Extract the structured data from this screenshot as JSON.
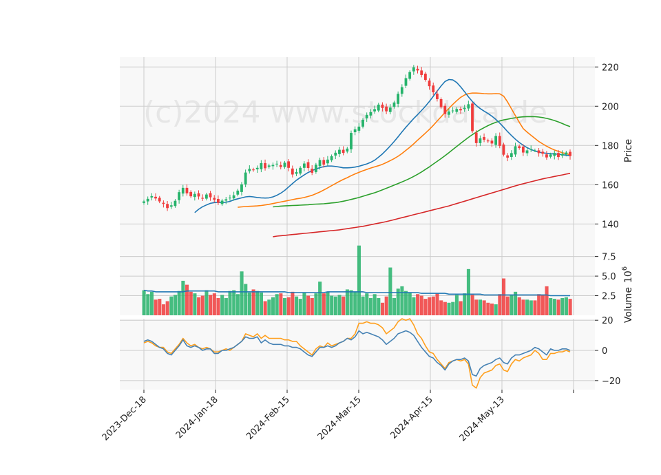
{
  "chart_data": [
    {
      "type": "candlestick",
      "ylabel": "Price",
      "ylim": [
        131,
        225
      ],
      "yticks": [
        140,
        160,
        180,
        200,
        220
      ],
      "watermark": "(c)2024 www.stockdata.de",
      "x_tick_labels": [
        "2023-Dec-18",
        "2024-Jan-18",
        "2024-Feb-15",
        "2024-Mar-15",
        "2024-Apr-15",
        "2024-May-13"
      ],
      "colors": {
        "up": "#26b36b",
        "down": "#f03c3c",
        "ma_fast": "#1f77b4",
        "ma_mid": "#ff7f0e",
        "ma_slow": "#2ca02c",
        "ma_long": "#d62728"
      },
      "close": [
        151.5,
        152.8,
        154.2,
        153.0,
        151.5,
        150.2,
        148.1,
        149.5,
        151.8,
        156.2,
        158.4,
        155.6,
        154.1,
        155.3,
        154.0,
        152.9,
        155.0,
        153.6,
        152.4,
        150.8,
        151.9,
        152.6,
        153.4,
        154.6,
        157.0,
        160.2,
        166.2,
        168.1,
        167.5,
        168.6,
        171.0,
        168.4,
        169.8,
        170.1,
        170.7,
        169.0,
        171.2,
        168.6,
        165.2,
        166.4,
        168.6,
        170.8,
        168.5,
        166.1,
        170.2,
        172.6,
        170.2,
        172.8,
        174.5,
        176.3,
        177.8,
        176.2,
        178.4,
        186.4,
        188.2,
        189.6,
        193.1,
        195.6,
        197.0,
        198.5,
        200.8,
        199.1,
        197.4,
        199.3,
        201.9,
        206.3,
        209.7,
        214.3,
        217.4,
        219.8,
        218.2,
        215.9,
        213.4,
        210.2,
        207.1,
        203.6,
        199.5,
        196.0,
        197.3,
        197.8,
        198.6,
        197.9,
        199.2,
        201.0,
        187.3,
        181.2,
        183.6,
        182.9,
        182.1,
        181.0,
        184.8,
        179.8,
        175.3,
        173.8,
        176.1,
        179.6,
        178.7,
        176.4,
        177.5,
        178.2,
        177.5,
        176.1,
        175.8,
        173.9,
        175.4,
        176.2,
        174.1,
        175.7,
        176.4,
        174.6
      ],
      "ma_fast": [
        145.8,
        147.5,
        148.8,
        149.7,
        150.5,
        150.9,
        151.0,
        150.9,
        151.1,
        151.5,
        152.3,
        152.8,
        153.3,
        153.8,
        154.0,
        153.8,
        153.5,
        153.3,
        153.2,
        153.3,
        153.8,
        154.6,
        155.7,
        157.1,
        158.8,
        160.6,
        162.3,
        163.7,
        165.0,
        166.2,
        167.2,
        168.0,
        168.7,
        169.2,
        169.5,
        169.5,
        169.3,
        169.0,
        168.6,
        168.6,
        168.7,
        169.0,
        169.4,
        170.0,
        170.6,
        171.4,
        172.5,
        174.0,
        175.7,
        177.7,
        179.8,
        182.0,
        184.4,
        186.9,
        189.3,
        191.5,
        193.7,
        195.7,
        197.8,
        200.0,
        202.4,
        205.0,
        207.7,
        210.3,
        212.6,
        213.6,
        213.4,
        212.1,
        209.9,
        207.4,
        204.8,
        202.4,
        200.4,
        198.8,
        197.5,
        196.3,
        194.9,
        193.3,
        191.4,
        189.3,
        187.1,
        185.1,
        183.2,
        181.5,
        180.1,
        178.9,
        177.9,
        177.2,
        176.6,
        176.2,
        176.0,
        175.8,
        175.7,
        175.5,
        175.3,
        175.0,
        174.8
      ],
      "ma_mid": [
        148.5,
        148.7,
        148.9,
        149.0,
        149.1,
        149.2,
        149.4,
        149.7,
        150.0,
        150.4,
        150.8,
        151.2,
        151.6,
        152.0,
        152.4,
        152.8,
        153.1,
        153.5,
        154.0,
        154.6,
        155.4,
        156.3,
        157.3,
        158.4,
        159.5,
        160.6,
        161.7,
        162.7,
        163.6,
        164.6,
        165.5,
        166.3,
        167.1,
        167.8,
        168.5,
        169.1,
        169.7,
        170.4,
        171.3,
        172.3,
        173.3,
        174.5,
        175.9,
        177.5,
        179.1,
        180.8,
        182.7,
        184.5,
        186.3,
        188.2,
        190.2,
        192.4,
        194.6,
        196.8,
        198.9,
        200.9,
        202.8,
        204.5,
        205.7,
        206.4,
        206.7,
        206.7,
        206.6,
        206.4,
        206.3,
        206.3,
        206.4,
        206.3,
        205.1,
        202.2,
        198.7,
        195.2,
        191.8,
        188.6,
        186.8,
        185.2,
        183.6,
        182.0,
        180.8,
        179.6,
        178.6,
        177.7,
        177.0,
        176.3,
        175.8,
        175.3
      ],
      "ma_slow": [
        148.7,
        148.9,
        149.1,
        149.2,
        149.3,
        149.4,
        149.5,
        149.6,
        149.7,
        149.8,
        150.0,
        150.1,
        150.2,
        150.3,
        150.5,
        150.7,
        150.9,
        151.2,
        151.6,
        152.0,
        152.5,
        153.0,
        153.5,
        154.1,
        154.7,
        155.3,
        155.9,
        156.6,
        157.4,
        158.2,
        159.0,
        159.8,
        160.6,
        161.4,
        162.3,
        163.2,
        164.2,
        165.3,
        166.5,
        167.8,
        169.1,
        170.5,
        171.9,
        173.3,
        174.8,
        176.3,
        177.9,
        179.5,
        181.1,
        182.6,
        184.1,
        185.5,
        186.8,
        188.0,
        189.1,
        190.1,
        191.0,
        191.8,
        192.5,
        193.0,
        193.4,
        193.8,
        194.1,
        194.4,
        194.6,
        194.7,
        194.7,
        194.7,
        194.5,
        194.2,
        193.8,
        193.3,
        192.7,
        192.0,
        191.2,
        190.3,
        189.6
      ],
      "ma_long": [
        133.5,
        133.8,
        134.0,
        134.2,
        134.4,
        134.6,
        134.8,
        135.0,
        135.2,
        135.4,
        135.6,
        135.8,
        136.0,
        136.2,
        136.4,
        136.6,
        136.8,
        137.0,
        137.3,
        137.6,
        137.9,
        138.2,
        138.5,
        138.8,
        139.2,
        139.6,
        140.0,
        140.4,
        140.8,
        141.2,
        141.7,
        142.2,
        142.7,
        143.2,
        143.7,
        144.2,
        144.7,
        145.2,
        145.7,
        146.2,
        146.7,
        147.2,
        147.7,
        148.2,
        148.7,
        149.2,
        149.8,
        150.4,
        151.0,
        151.6,
        152.2,
        152.8,
        153.4,
        154.0,
        154.6,
        155.2,
        155.8,
        156.4,
        157.0,
        157.6,
        158.2,
        158.8,
        159.4,
        160.0,
        160.5,
        161.0,
        161.5,
        162.0,
        162.5,
        163.0,
        163.4,
        163.8,
        164.2,
        164.6,
        165.0,
        165.4,
        165.8
      ]
    },
    {
      "type": "bar",
      "ylabel": "Volume",
      "unit": "10",
      "unit_exp": "6",
      "ylim": [
        0,
        9.4
      ],
      "yticks": [
        2.5,
        5.0,
        7.5
      ],
      "ytick_labels": [
        "2.5",
        "5.0",
        "7.5"
      ],
      "values": [
        3.2,
        2.7,
        3.0,
        2.0,
        2.1,
        1.4,
        1.8,
        2.4,
        2.6,
        3.1,
        4.4,
        3.9,
        3.0,
        2.8,
        2.3,
        2.5,
        3.2,
        2.6,
        2.8,
        2.2,
        2.6,
        2.2,
        3.1,
        3.2,
        2.7,
        5.6,
        4.0,
        2.9,
        3.3,
        3.1,
        2.9,
        1.8,
        2.0,
        2.3,
        2.7,
        2.8,
        2.2,
        2.3,
        3.0,
        2.4,
        2.1,
        2.9,
        2.5,
        2.2,
        2.8,
        4.3,
        2.8,
        3.0,
        2.5,
        2.4,
        2.6,
        2.4,
        3.3,
        3.2,
        3.0,
        8.9,
        2.4,
        2.8,
        2.2,
        2.7,
        2.2,
        1.6,
        2.4,
        6.1,
        2.2,
        3.4,
        3.7,
        3.1,
        2.9,
        2.3,
        2.7,
        2.5,
        2.1,
        2.3,
        2.4,
        2.8,
        1.9,
        1.7,
        1.6,
        1.7,
        2.6,
        1.8,
        2.8,
        5.9,
        2.6,
        2.0,
        2.0,
        1.9,
        1.6,
        1.5,
        1.4,
        2.7,
        4.7,
        2.4,
        2.6,
        3.0,
        2.3,
        2.0,
        2.0,
        1.9,
        1.9,
        2.7,
        2.6,
        3.7,
        2.2,
        2.1,
        2.0,
        2.2,
        2.3,
        2.1
      ],
      "ma": [
        3.2,
        3.1,
        3.1,
        3.0,
        3.0,
        3.0,
        3.0,
        3.0,
        3.0,
        3.0,
        3.0,
        3.1,
        3.1,
        3.1,
        3.1,
        3.1,
        3.1,
        3.1,
        3.1,
        3.0,
        3.0,
        3.0,
        3.0,
        3.0,
        3.0,
        3.0,
        3.0,
        3.0,
        3.0,
        3.0,
        3.0,
        3.0,
        3.0,
        3.0,
        3.0,
        3.0,
        3.0,
        2.9,
        2.9,
        2.9,
        2.9,
        2.9,
        2.9,
        2.9,
        2.9,
        2.9,
        2.9,
        3.0,
        3.0,
        3.0,
        3.0,
        3.0,
        3.0,
        3.0,
        3.0,
        3.0,
        3.0,
        2.9,
        2.9,
        2.9,
        2.9,
        2.9,
        2.9,
        2.9,
        2.9,
        2.9,
        2.9,
        2.9,
        2.9,
        2.9,
        2.9,
        2.8,
        2.8,
        2.8,
        2.8,
        2.8,
        2.8,
        2.8,
        2.7,
        2.7,
        2.7,
        2.7,
        2.7,
        2.7,
        2.7,
        2.7,
        2.7,
        2.6,
        2.6,
        2.6,
        2.6,
        2.6,
        2.6,
        2.6,
        2.6,
        2.6,
        2.6,
        2.6,
        2.6,
        2.6,
        2.6,
        2.6,
        2.6,
        2.6,
        2.5,
        2.5,
        2.5,
        2.5,
        2.5,
        2.5
      ],
      "colors": {
        "up": "#26b36b",
        "down": "#f03c3c",
        "ma": "#1f77b4"
      }
    },
    {
      "type": "line",
      "ylim": [
        -26,
        21
      ],
      "yticks": [
        -20,
        0,
        20
      ],
      "ytick_labels": [
        "−20",
        "0",
        "20"
      ],
      "series": [
        {
          "color": "#ff9f1c",
          "values": [
            5,
            6,
            5,
            3,
            2,
            2,
            -1,
            -2,
            1,
            4,
            8,
            5,
            3,
            4,
            2,
            1,
            2,
            1,
            -1,
            -1,
            0,
            1,
            0,
            2,
            4,
            6,
            11,
            10,
            9,
            11,
            8,
            10,
            8,
            8,
            8,
            8,
            7,
            7,
            6,
            6,
            3,
            1,
            -1,
            -3,
            1,
            3,
            2,
            5,
            3,
            4,
            5,
            6,
            8,
            8,
            11,
            18,
            18,
            19,
            18,
            18,
            17,
            15,
            11,
            13,
            15,
            19,
            21,
            20,
            21,
            17,
            11,
            8,
            3,
            -1,
            -2,
            -6,
            -9,
            -12,
            -8,
            -7,
            -6,
            -7,
            -6,
            -9,
            -23,
            -25,
            -18,
            -15,
            -14,
            -13,
            -10,
            -9,
            -13,
            -14,
            -9,
            -6,
            -7,
            -5,
            -4,
            -3,
            0,
            -2,
            -6,
            -6,
            -2,
            -2,
            -1,
            -1,
            0,
            -1
          ]
        },
        {
          "color": "#4682b4",
          "values": [
            6,
            7,
            6,
            4,
            2,
            1,
            -2,
            -3,
            0,
            3,
            7,
            3,
            2,
            3,
            2,
            0,
            1,
            1,
            -2,
            -2,
            0,
            0,
            1,
            2,
            4,
            6,
            9,
            8,
            8,
            9,
            5,
            7,
            5,
            4,
            4,
            4,
            3,
            3,
            2,
            2,
            1,
            -1,
            -3,
            -4,
            -1,
            2,
            2,
            3,
            2,
            3,
            5,
            6,
            8,
            7,
            9,
            13,
            11,
            12,
            11,
            10,
            9,
            7,
            4,
            6,
            8,
            11,
            12,
            13,
            12,
            10,
            6,
            2,
            -1,
            -4,
            -5,
            -8,
            -10,
            -13,
            -9,
            -7,
            -6,
            -6,
            -5,
            -7,
            -16,
            -17,
            -12,
            -10,
            -9,
            -8,
            -6,
            -5,
            -8,
            -9,
            -5,
            -3,
            -3,
            -2,
            -1,
            0,
            2,
            1,
            -1,
            -3,
            1,
            0,
            0,
            1,
            1,
            0
          ]
        }
      ]
    }
  ]
}
